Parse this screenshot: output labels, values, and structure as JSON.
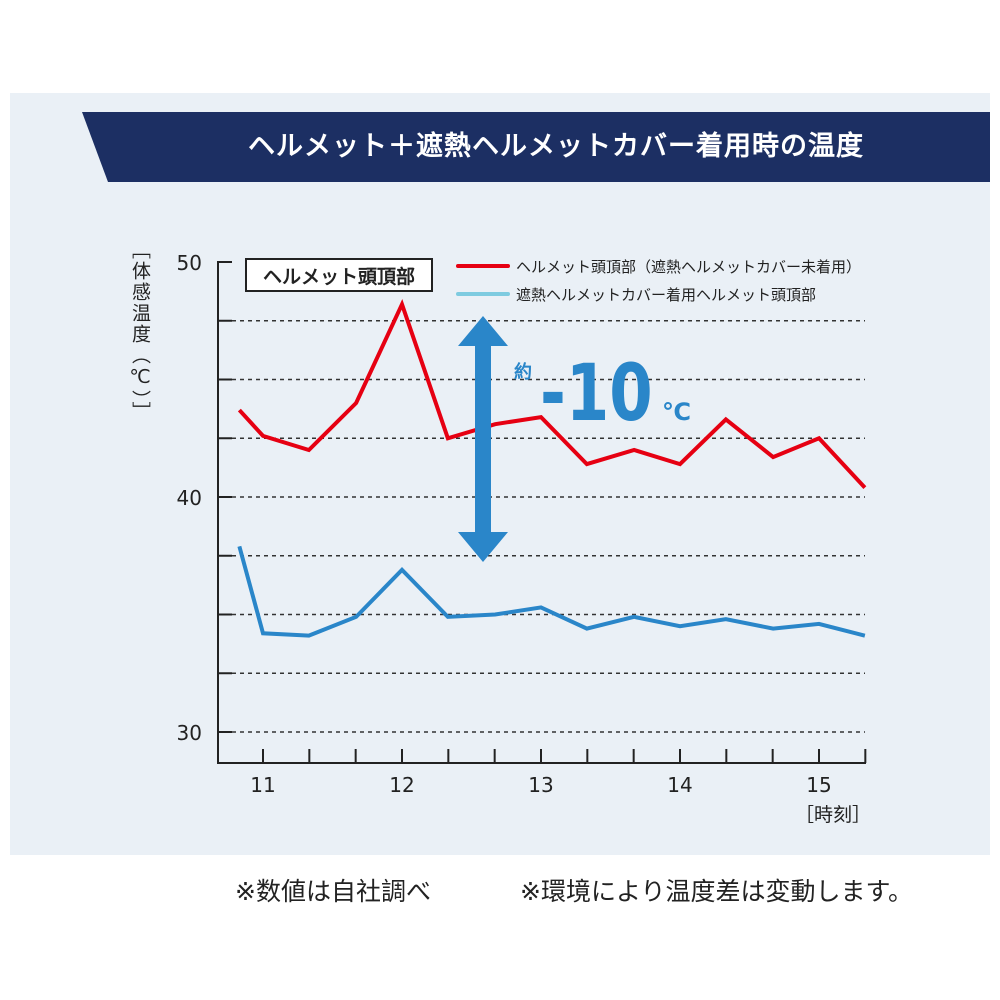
{
  "title": "ヘルメット＋遮熱ヘルメットカバー着用時の温度",
  "notes": [
    "※数値は自社調べ",
    "※環境により温度差は変動します。"
  ],
  "chart_data": {
    "type": "line",
    "title": "ヘルメット＋遮熱ヘルメットカバー着用時の温度",
    "panel_label": "ヘルメット頭頂部",
    "ylabel": "［体感温度（℃）］",
    "xlabel": "［時刻］",
    "ylim": [
      30,
      50
    ],
    "yticks": [
      30,
      40,
      50
    ],
    "xlim": [
      10.75,
      15.33
    ],
    "xticks": [
      11,
      12,
      13,
      14,
      15
    ],
    "grid": "horizontal dashed every 2.5",
    "legend_position": "top-right",
    "x": [
      10.83,
      11,
      11.33,
      11.67,
      12,
      12.33,
      12.67,
      13,
      13.33,
      13.67,
      14,
      14.33,
      14.67,
      15,
      15.33
    ],
    "series": [
      {
        "name": "ヘルメット頭頂部（遮熱ヘルメットカバー未着用）",
        "color": "#e60012",
        "legend_color": "#e60012",
        "values": [
          43.7,
          42.6,
          42.0,
          44.0,
          48.2,
          42.5,
          43.1,
          43.4,
          41.4,
          42.0,
          41.4,
          43.3,
          41.7,
          42.5,
          40.4
        ]
      },
      {
        "name": "遮熱ヘルメットカバー着用ヘルメット頭頂部",
        "color": "#2a86c9",
        "legend_color": "#7ecbe0",
        "values": [
          37.9,
          34.2,
          34.1,
          34.9,
          36.9,
          34.9,
          35.0,
          35.3,
          34.4,
          34.9,
          34.5,
          34.8,
          34.4,
          34.6,
          34.1
        ]
      }
    ],
    "annotation": {
      "prefix": "約",
      "value": "-10",
      "unit": "℃",
      "color": "#2a86c9"
    }
  }
}
